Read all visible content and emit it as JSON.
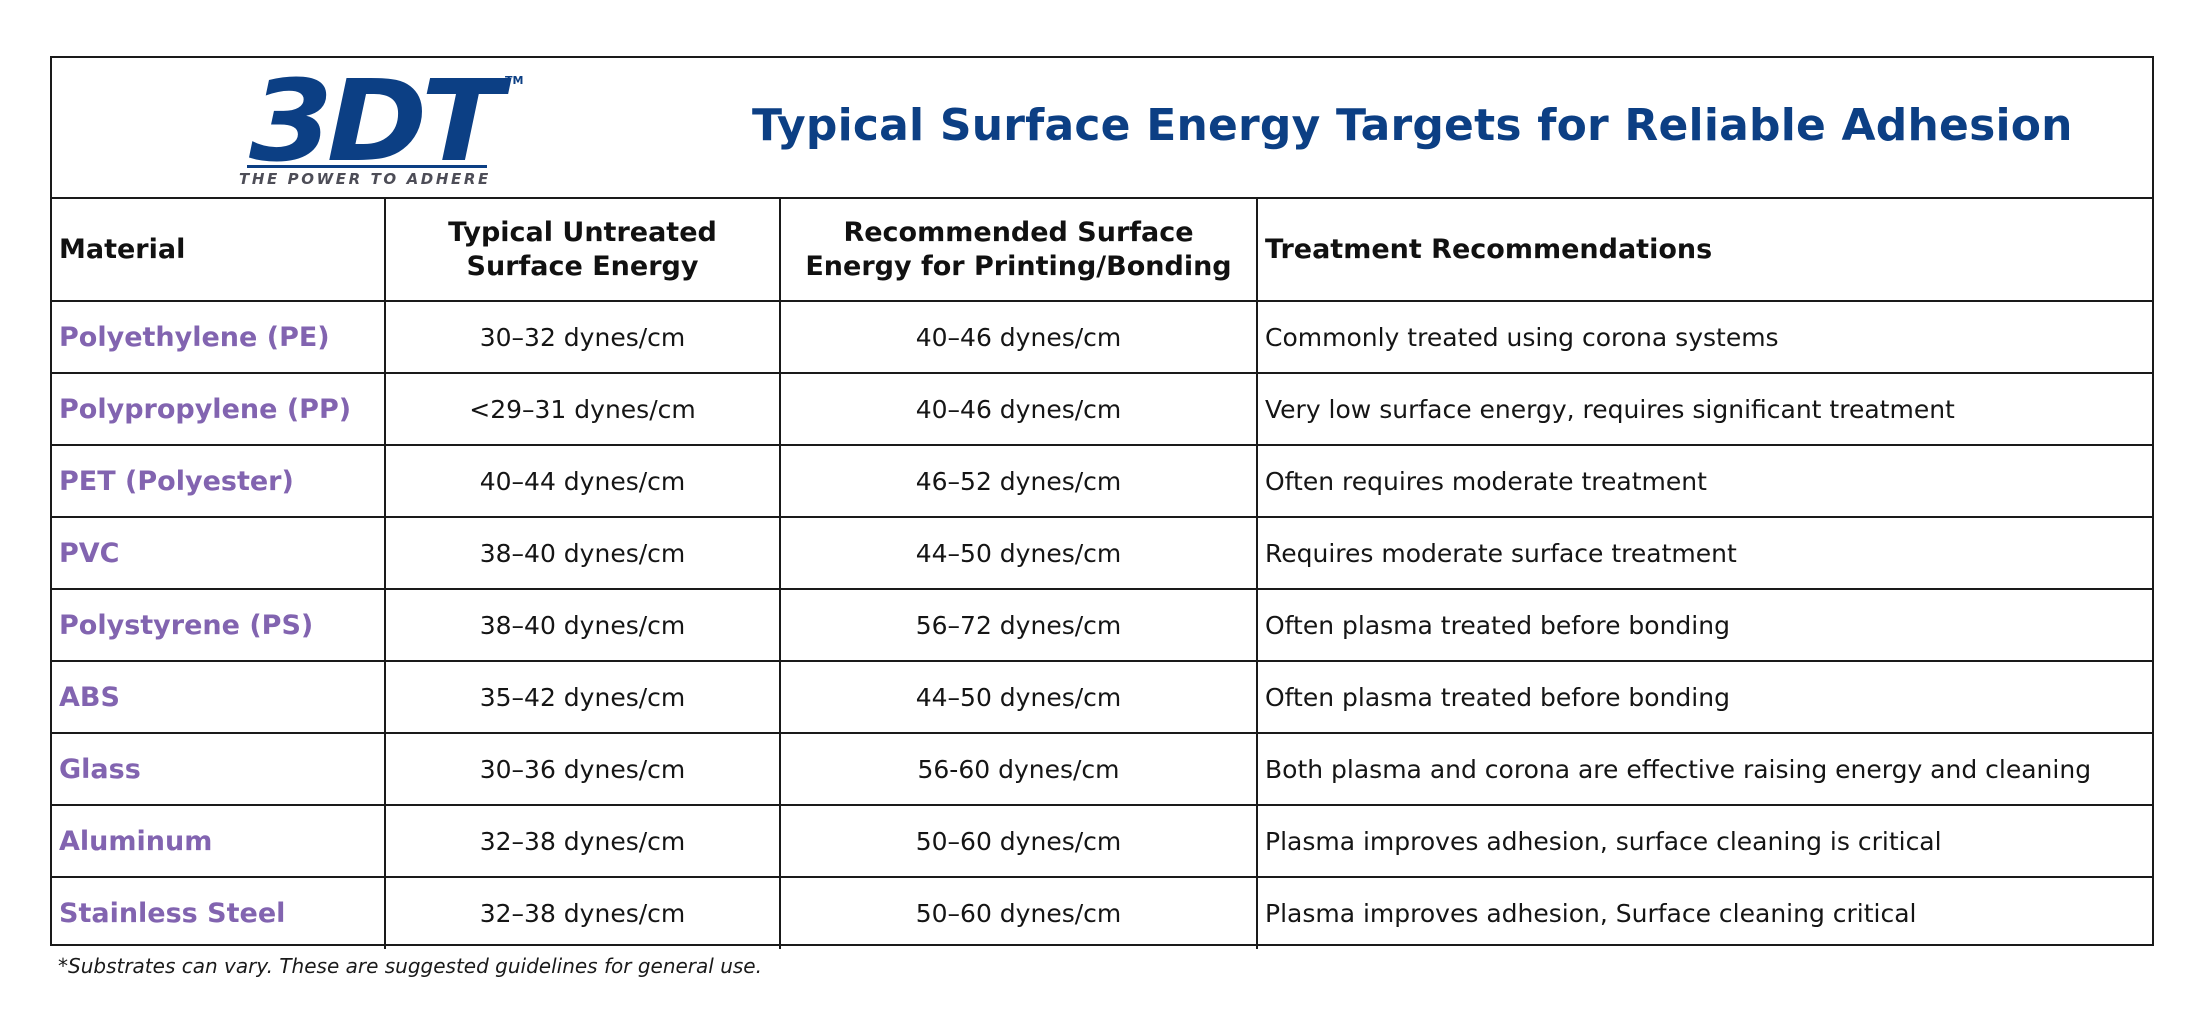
{
  "logo": {
    "text": "3DT",
    "trademark": "TM",
    "tagline": "THE POWER TO ADHERE",
    "color": "#0c3f84"
  },
  "title": "Typical Surface Energy Targets for Reliable Adhesion",
  "columns": [
    {
      "line1": "Material",
      "line2": ""
    },
    {
      "line1": "Typical Untreated",
      "line2": "Surface Energy"
    },
    {
      "line1": "Recommended Surface",
      "line2": "Energy for Printing/Bonding"
    },
    {
      "line1": "Treatment Recommendations",
      "line2": ""
    }
  ],
  "rows": [
    {
      "material": "Polyethylene (PE)",
      "untreated": "30–32 dynes/cm",
      "recommended": "40–46 dynes/cm",
      "treatment": "Commonly treated using corona systems"
    },
    {
      "material": "Polypropylene (PP)",
      "untreated": "<29–31 dynes/cm",
      "recommended": "40–46 dynes/cm",
      "treatment": "Very low surface energy, requires significant treatment"
    },
    {
      "material": "PET (Polyester)",
      "untreated": "40–44 dynes/cm",
      "recommended": "46–52 dynes/cm",
      "treatment": "Often requires moderate treatment"
    },
    {
      "material": "PVC",
      "untreated": "38–40 dynes/cm",
      "recommended": "44–50 dynes/cm",
      "treatment": "Requires moderate surface treatment"
    },
    {
      "material": "Polystyrene (PS)",
      "untreated": "38–40 dynes/cm",
      "recommended": "56–72 dynes/cm",
      "treatment": "Often plasma treated before bonding"
    },
    {
      "material": "ABS",
      "untreated": "35–42 dynes/cm",
      "recommended": "44–50 dynes/cm",
      "treatment": "Often plasma treated before bonding"
    },
    {
      "material": "Glass",
      "untreated": "30–36 dynes/cm",
      "recommended": "56-60 dynes/cm",
      "treatment": "Both plasma and corona are effective raising energy and cleaning"
    },
    {
      "material": "Aluminum",
      "untreated": "32–38 dynes/cm",
      "recommended": "50–60 dynes/cm",
      "treatment": "Plasma improves adhesion, surface cleaning is critical"
    },
    {
      "material": "Stainless Steel",
      "untreated": "32–38 dynes/cm",
      "recommended": "50–60 dynes/cm",
      "treatment": "Plasma improves adhesion, Surface cleaning critical"
    }
  ],
  "footnote": "*Substrates can vary. These are suggested guidelines for general use.",
  "colors": {
    "title": "#0c3f84",
    "material": "#8264b0",
    "border": "#1a1a1a"
  }
}
